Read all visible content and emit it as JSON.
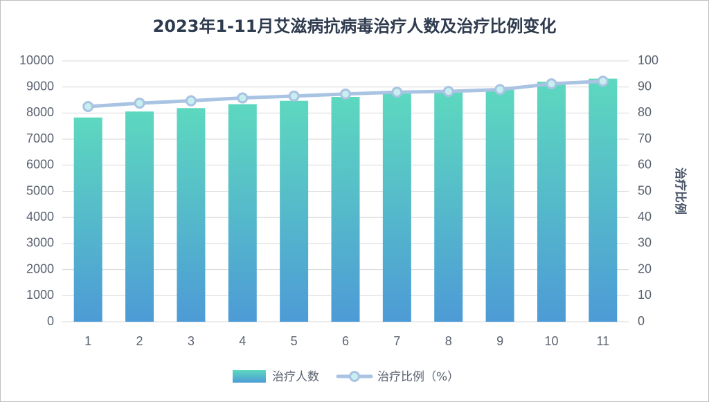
{
  "chart_data": {
    "type": "bar",
    "title": "2023年1-11月艾滋病抗病毒治疗人数及治疗比例变化",
    "xlabel": "",
    "ylabel": "",
    "ylabel_right": "治疗比例",
    "categories": [
      "1",
      "2",
      "3",
      "4",
      "5",
      "6",
      "7",
      "8",
      "9",
      "10",
      "11"
    ],
    "series": [
      {
        "name": "治疗人数",
        "type": "bar",
        "axis": "left",
        "values": [
          7830,
          8060,
          8190,
          8340,
          8470,
          8620,
          8740,
          8780,
          8890,
          9200,
          9320
        ]
      },
      {
        "name": "治疗比例（%）",
        "type": "line",
        "axis": "right",
        "values": [
          82.5,
          83.8,
          84.7,
          85.8,
          86.5,
          87.3,
          88.0,
          88.3,
          89.0,
          91.2,
          92.2
        ]
      }
    ],
    "ylim": [
      0,
      10000
    ],
    "yticks": [
      0,
      1000,
      2000,
      3000,
      4000,
      5000,
      6000,
      7000,
      8000,
      9000,
      10000
    ],
    "ylim_right": [
      0,
      100
    ],
    "yticks_right": [
      0,
      10,
      20,
      30,
      40,
      50,
      60,
      70,
      80,
      90,
      100
    ],
    "grid": true,
    "legend_position": "bottom",
    "colors": {
      "bar_top": "#5dd8bf",
      "bar_bottom": "#4d9bd6",
      "line": "#a9c3e3",
      "marker_fill": "#c8eef0",
      "grid": "#d9d9d9",
      "axis_text": "#5a6270",
      "title": "#2e3b4e"
    }
  }
}
